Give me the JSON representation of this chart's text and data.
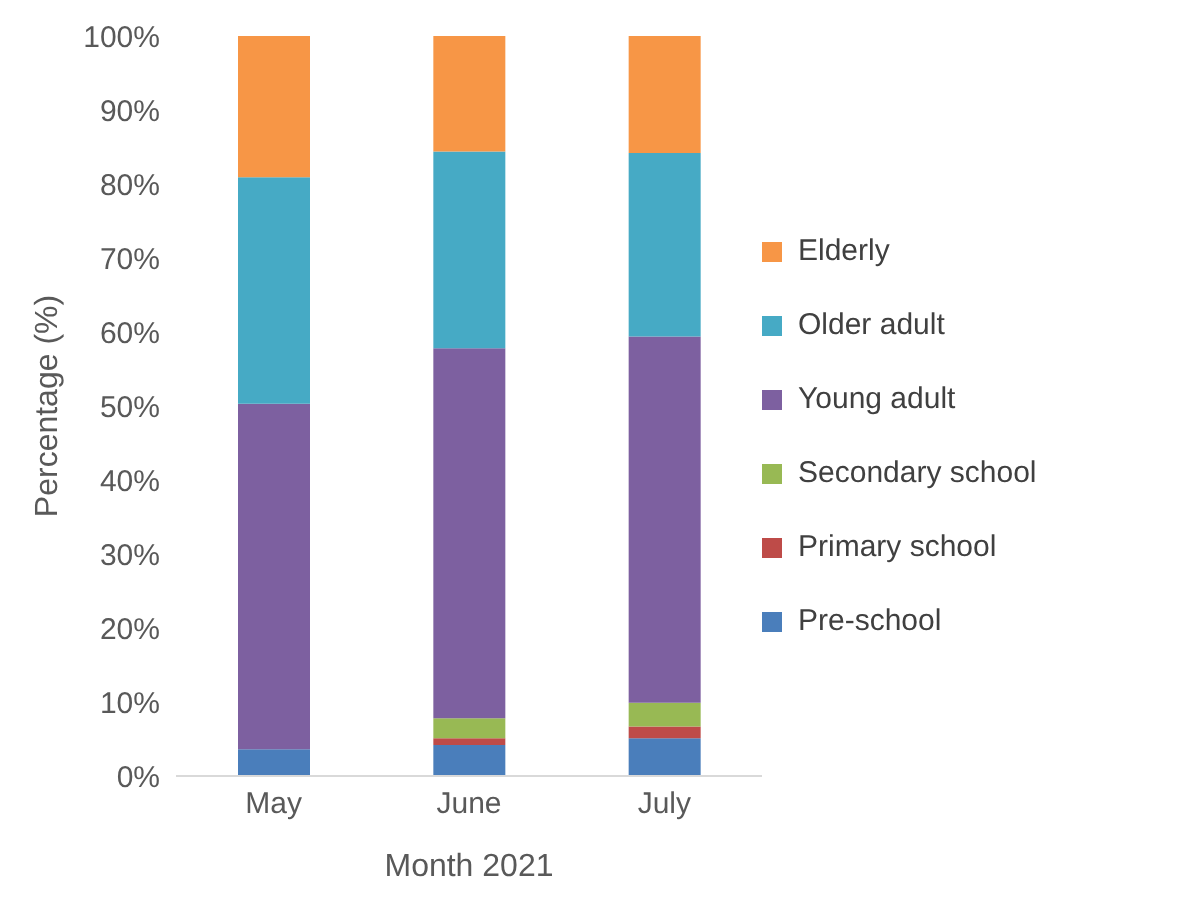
{
  "chart_data": {
    "type": "bar",
    "stacked": true,
    "xlabel": "Month 2021",
    "ylabel": "Percentage (%)",
    "categories": [
      "May",
      "June",
      "July"
    ],
    "series": [
      {
        "name": "Pre-school",
        "color": "#4a7ebb",
        "values": [
          3.6,
          4.2,
          5.1
        ]
      },
      {
        "name": "Primary school",
        "color": "#be4b48",
        "values": [
          0,
          0.9,
          1.6
        ]
      },
      {
        "name": "Secondary school",
        "color": "#98b954",
        "values": [
          0,
          2.7,
          3.2
        ]
      },
      {
        "name": "Young adult",
        "color": "#7d60a0",
        "values": [
          46.7,
          50.0,
          49.5
        ]
      },
      {
        "name": "Older adult",
        "color": "#46aac5",
        "values": [
          30.6,
          26.6,
          24.8
        ]
      },
      {
        "name": "Elderly",
        "color": "#f79646",
        "values": [
          19.1,
          15.6,
          15.8
        ]
      }
    ],
    "ylim": [
      0,
      100
    ],
    "yticks": [
      {
        "value": 0,
        "label": "0%"
      },
      {
        "value": 10,
        "label": "10%"
      },
      {
        "value": 20,
        "label": "20%"
      },
      {
        "value": 30,
        "label": "30%"
      },
      {
        "value": 40,
        "label": "40%"
      },
      {
        "value": 50,
        "label": "50%"
      },
      {
        "value": 60,
        "label": "60%"
      },
      {
        "value": 70,
        "label": "70%"
      },
      {
        "value": 80,
        "label": "80%"
      },
      {
        "value": 90,
        "label": "90%"
      },
      {
        "value": 100,
        "label": "100%"
      }
    ],
    "grid": false,
    "legend": "right"
  }
}
